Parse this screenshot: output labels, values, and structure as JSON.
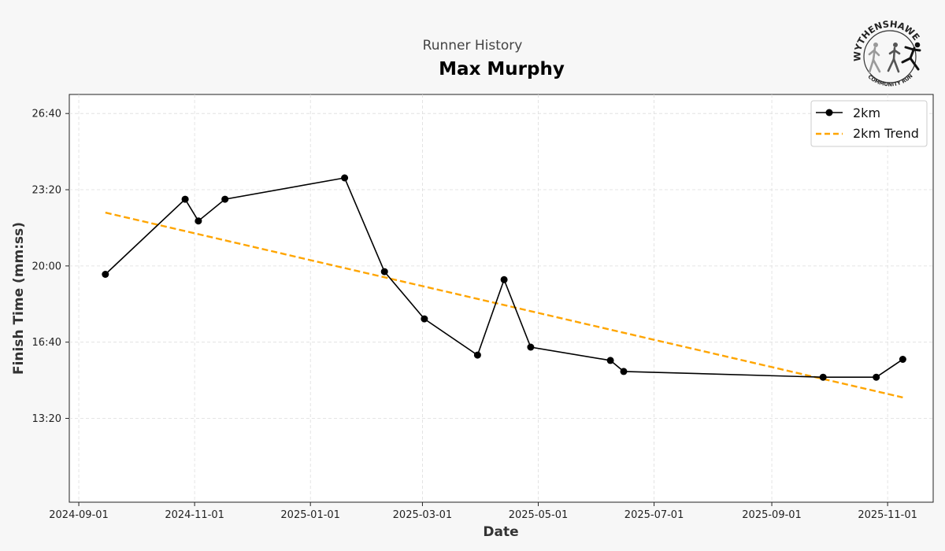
{
  "header": {
    "supertitle": "Runner History",
    "title": "Max Murphy"
  },
  "logo": {
    "top_text": "WYTHENSHAWE",
    "bottom_text": "COMMUNITY RUN"
  },
  "colors": {
    "series": "#000000",
    "trend": "#FFA500",
    "grid": "#dddddd",
    "background": "#f7f7f7",
    "plot_background": "#ffffff"
  },
  "chart_data": {
    "type": "line",
    "title": "Max Murphy",
    "subtitle": "Runner History",
    "xlabel": "Date",
    "ylabel": "Finish Time (mm:ss)",
    "x_type": "date",
    "xlim": [
      "2024-08-27",
      "2025-11-25"
    ],
    "ylim_seconds": [
      580,
      1650
    ],
    "x_ticks": [
      "2024-09-01",
      "2024-11-01",
      "2025-01-01",
      "2025-03-01",
      "2025-05-01",
      "2025-07-01",
      "2025-09-01",
      "2025-11-01"
    ],
    "y_ticks_seconds": [
      800,
      1000,
      1200,
      1400,
      1600
    ],
    "y_tick_labels": [
      "13:20",
      "16:40",
      "20:00",
      "23:20",
      "26:40"
    ],
    "grid": true,
    "legend": {
      "placement": "top-right",
      "entries": [
        "2km",
        "2km Trend"
      ]
    },
    "series": [
      {
        "name": "2km",
        "style": "solid-with-markers",
        "x": [
          "2024-09-15",
          "2024-10-27",
          "2024-11-03",
          "2024-11-17",
          "2025-01-19",
          "2025-02-09",
          "2025-03-02",
          "2025-03-30",
          "2025-04-13",
          "2025-04-27",
          "2025-06-08",
          "2025-06-15",
          "2025-09-28",
          "2025-10-26",
          "2025-11-09"
        ],
        "y_seconds": [
          1178,
          1375,
          1318,
          1375,
          1431,
          1185,
          1061,
          966,
          1164,
          987,
          952,
          923,
          908,
          908,
          955
        ]
      },
      {
        "name": "2km Trend",
        "style": "dashed",
        "x": [
          "2024-09-15",
          "2025-11-09"
        ],
        "y_seconds": [
          1340,
          855
        ]
      }
    ]
  }
}
